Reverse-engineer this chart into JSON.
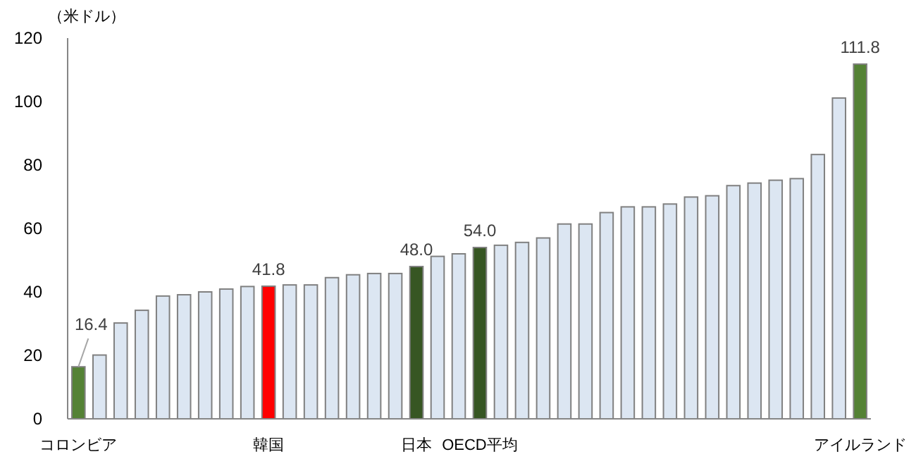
{
  "chart_data": {
    "type": "bar",
    "ylabel": "（米ドル）",
    "categories": [
      "コロンビア",
      null,
      null,
      null,
      null,
      null,
      null,
      null,
      null,
      "韓国",
      null,
      null,
      null,
      null,
      null,
      null,
      "日本",
      null,
      null,
      "OECD平均",
      null,
      null,
      null,
      null,
      null,
      null,
      null,
      null,
      null,
      null,
      null,
      null,
      null,
      null,
      null,
      null,
      null,
      "アイルランド"
    ],
    "values": [
      16.4,
      20.1,
      30.2,
      34.2,
      38.7,
      39.1,
      40.0,
      40.9,
      41.7,
      41.8,
      42.2,
      42.2,
      44.5,
      45.4,
      45.8,
      45.8,
      48.0,
      51.2,
      52.0,
      54.0,
      54.7,
      55.6,
      57.0,
      61.4,
      61.4,
      65.0,
      66.8,
      66.8,
      67.7,
      69.9,
      70.3,
      73.5,
      74.3,
      75.2,
      75.7,
      83.3,
      101.1,
      111.8
    ],
    "colors": [
      "#548235",
      "#dce6f2",
      "#dce6f2",
      "#dce6f2",
      "#dce6f2",
      "#dce6f2",
      "#dce6f2",
      "#dce6f2",
      "#dce6f2",
      "#ff0000",
      "#dce6f2",
      "#dce6f2",
      "#dce6f2",
      "#dce6f2",
      "#dce6f2",
      "#dce6f2",
      "#375623",
      "#dce6f2",
      "#dce6f2",
      "#375623",
      "#dce6f2",
      "#dce6f2",
      "#dce6f2",
      "#dce6f2",
      "#dce6f2",
      "#dce6f2",
      "#dce6f2",
      "#dce6f2",
      "#dce6f2",
      "#dce6f2",
      "#dce6f2",
      "#dce6f2",
      "#dce6f2",
      "#dce6f2",
      "#dce6f2",
      "#dce6f2",
      "#dce6f2",
      "#548235"
    ],
    "value_labels": [
      "16.4",
      null,
      null,
      null,
      null,
      null,
      null,
      null,
      null,
      "41.8",
      null,
      null,
      null,
      null,
      null,
      null,
      "48.0",
      null,
      null,
      "54.0",
      null,
      null,
      null,
      null,
      null,
      null,
      null,
      null,
      null,
      null,
      null,
      null,
      null,
      null,
      null,
      null,
      null,
      "111.8"
    ],
    "ylim": [
      0,
      120
    ],
    "yticks": [
      0,
      20,
      40,
      60,
      80,
      100,
      120
    ]
  }
}
